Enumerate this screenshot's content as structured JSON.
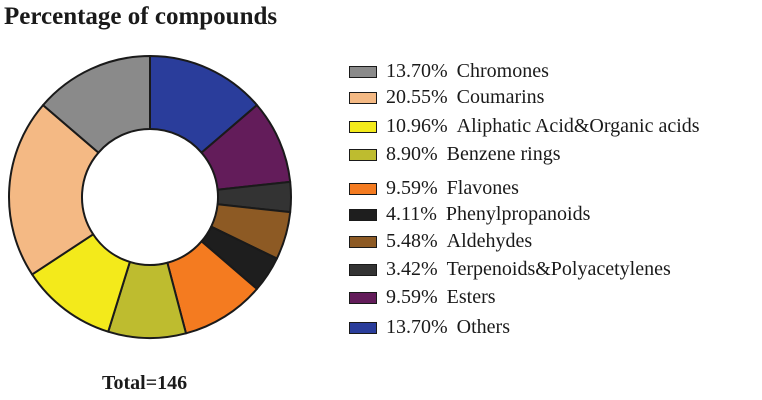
{
  "chart_data": {
    "type": "pie",
    "donut": true,
    "title": "Percentage of compounds",
    "footer": "Total=146",
    "categories": [
      "Chromones",
      "Coumarins",
      "Aliphatic Acid&Organic acids",
      "Benzene rings",
      "Flavones",
      "Phenylpropanoids",
      "Aldehydes",
      "Terpenoids&Polyacetylenes",
      "Esters",
      "Others"
    ],
    "values": [
      13.7,
      20.55,
      10.96,
      8.9,
      9.59,
      4.11,
      5.48,
      3.42,
      9.59,
      13.7
    ],
    "value_labels": [
      "13.70%",
      "20.55%",
      "10.96%",
      "8.90%",
      "9.59%",
      "4.11%",
      "5.48%",
      "3.42%",
      "9.59%",
      "13.70%"
    ],
    "colors": [
      "#8a8a8a",
      "#f4b984",
      "#f3ea1b",
      "#bebc2f",
      "#f47b20",
      "#1e1e1e",
      "#8d5a24",
      "#333333",
      "#631c5a",
      "#2a3d9b"
    ],
    "legend_position": "right"
  }
}
